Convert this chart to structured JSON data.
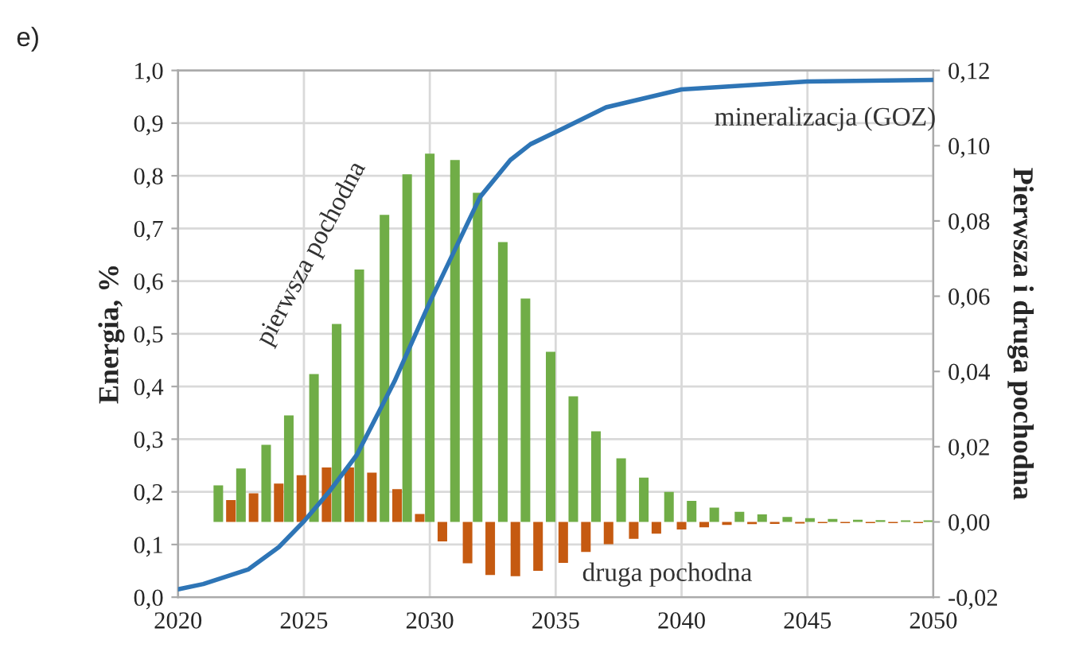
{
  "chart_data": {
    "type": "bar",
    "ylabel": "Energia, %",
    "y2label": "Pierwsza i druga pochodna",
    "annotations": [
      "e)"
    ],
    "xlim": [
      2020,
      2050
    ],
    "xticks": [
      2020,
      2025,
      2030,
      2035,
      2040,
      2045,
      2050
    ],
    "ylim": [
      0,
      1
    ],
    "yticks": [
      {
        "value": 0,
        "label": "0,0"
      },
      {
        "value": 0.1,
        "label": "0,1"
      },
      {
        "value": 0.2,
        "label": "0,2"
      },
      {
        "value": 0.3,
        "label": "0,3"
      },
      {
        "value": 0.4,
        "label": "0,4"
      },
      {
        "value": 0.5,
        "label": "0,5"
      },
      {
        "value": 0.6,
        "label": "0,6"
      },
      {
        "value": 0.7,
        "label": "0,7"
      },
      {
        "value": 0.8,
        "label": "0,8"
      },
      {
        "value": 0.9,
        "label": "0,9"
      },
      {
        "value": 1,
        "label": "1,0"
      }
    ],
    "y2lim": [
      -0.02,
      0.12
    ],
    "y2ticks": [
      {
        "value": -0.02,
        "label": "-0,02"
      },
      {
        "value": 0,
        "label": "0,00"
      },
      {
        "value": 0.02,
        "label": "0,02"
      },
      {
        "value": 0.04,
        "label": "0,04"
      },
      {
        "value": 0.06,
        "label": "0,06"
      },
      {
        "value": 0.08,
        "label": "0,08"
      },
      {
        "value": 0.1,
        "label": "0,10"
      },
      {
        "value": 0.12,
        "label": "0,12"
      }
    ],
    "grid": true,
    "legend": false,
    "series": [
      {
        "name": "pierwsza pochodna",
        "axis": "y2",
        "color": "#70ad47",
        "x": [
          2021.6,
          2022.5,
          2023.5,
          2024.4,
          2025.4,
          2026.3,
          2027.2,
          2028.2,
          2029.1,
          2030.0,
          2031.0,
          2031.9,
          2032.9,
          2033.8,
          2034.8,
          2035.7,
          2036.6,
          2037.6,
          2038.5,
          2039.5,
          2040.4,
          2041.3,
          2042.3,
          2043.2,
          2044.2,
          2045.1,
          2046.0,
          2047.0,
          2047.9,
          2048.9,
          2049.8
        ],
        "values": [
          0.0097,
          0.0142,
          0.0205,
          0.0283,
          0.0393,
          0.0526,
          0.0671,
          0.0816,
          0.0924,
          0.0979,
          0.0962,
          0.0875,
          0.0744,
          0.0594,
          0.0452,
          0.0334,
          0.0241,
          0.0169,
          0.0118,
          0.008,
          0.0056,
          0.0038,
          0.0027,
          0.002,
          0.0013,
          0.001,
          0.0008,
          0.0006,
          0.0005,
          0.0004,
          0.0004
        ]
      },
      {
        "name": "druga pochodna",
        "axis": "y2",
        "color": "#c55a11",
        "x": [
          2022.1,
          2023.0,
          2024.0,
          2024.9,
          2025.9,
          2026.8,
          2027.7,
          2028.7,
          2029.6,
          2030.5,
          2031.5,
          2032.4,
          2033.4,
          2034.3,
          2035.3,
          2036.2,
          2037.1,
          2038.1,
          2039.0,
          2040.0,
          2040.9,
          2041.8,
          2042.8,
          2043.7,
          2044.7,
          2045.6,
          2046.5,
          2047.5,
          2048.4,
          2049.4
        ],
        "values": [
          0.0058,
          0.0076,
          0.0102,
          0.0124,
          0.0145,
          0.0145,
          0.0131,
          0.0087,
          0.0021,
          -0.0052,
          -0.011,
          -0.0141,
          -0.0144,
          -0.013,
          -0.0109,
          -0.008,
          -0.0059,
          -0.0045,
          -0.0031,
          -0.002,
          -0.0014,
          -0.0008,
          -0.0006,
          -0.0005,
          -0.0004,
          -0.0003,
          -0.0003,
          -0.0003,
          -0.0003,
          -0.0003
        ]
      },
      {
        "name": "mineralizacja (GOZ)",
        "type": "line",
        "axis": "y",
        "color": "#2e75b6",
        "x": [
          2020,
          2021,
          2022.8,
          2024,
          2025,
          2026,
          2027.1,
          2028.6,
          2030,
          2031.4,
          2032,
          2033.2,
          2034,
          2035.3,
          2037,
          2040,
          2045,
          2050
        ],
        "values": [
          0.015,
          0.025,
          0.053,
          0.095,
          0.144,
          0.2,
          0.27,
          0.41,
          0.56,
          0.7,
          0.76,
          0.83,
          0.86,
          0.89,
          0.93,
          0.964,
          0.979,
          0.982
        ]
      }
    ]
  }
}
